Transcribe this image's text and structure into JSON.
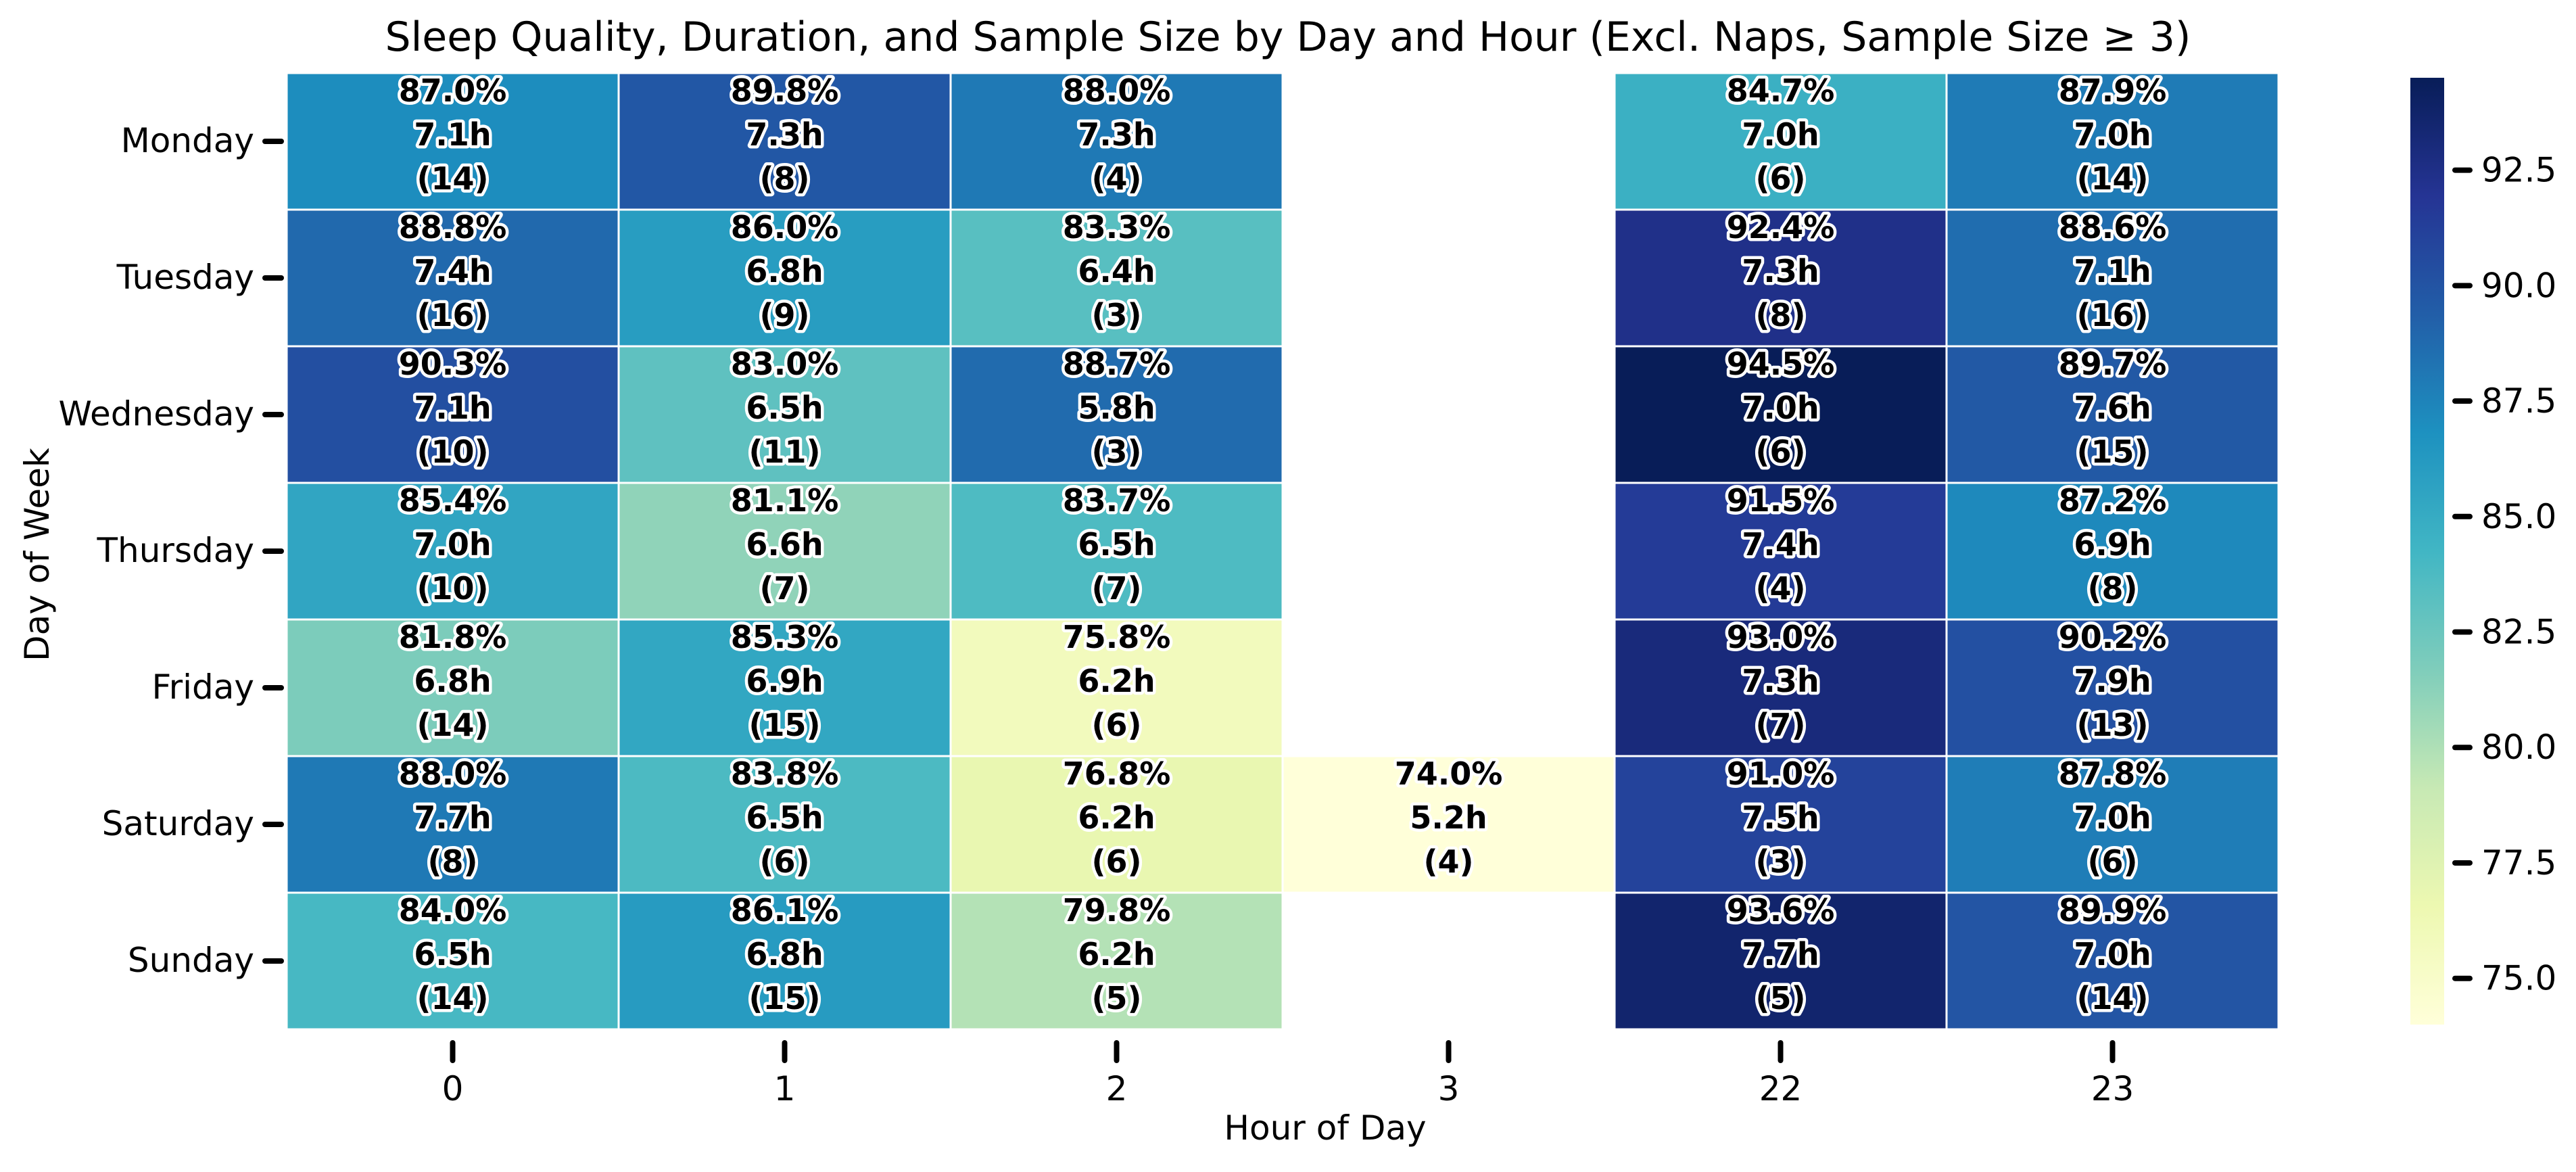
{
  "chart_data": {
    "type": "heatmap",
    "title": "Sleep Quality, Duration, and Sample Size by Day and Hour (Excl. Naps, Sample Size ≥ 3)",
    "xlabel": "Hour of Day",
    "ylabel": "Day of Week",
    "x_categories": [
      "0",
      "1",
      "2",
      "3",
      "22",
      "23"
    ],
    "y_categories": [
      "Monday",
      "Tuesday",
      "Wednesday",
      "Thursday",
      "Friday",
      "Saturday",
      "Sunday"
    ],
    "quality": [
      [
        87.0,
        89.8,
        88.0,
        null,
        84.7,
        87.9
      ],
      [
        88.8,
        86.0,
        83.3,
        null,
        92.4,
        88.6
      ],
      [
        90.3,
        83.0,
        88.7,
        null,
        94.5,
        89.7
      ],
      [
        85.4,
        81.1,
        83.7,
        null,
        91.5,
        87.2
      ],
      [
        81.8,
        85.3,
        75.8,
        null,
        93.0,
        90.2
      ],
      [
        88.0,
        83.8,
        76.8,
        74.0,
        91.0,
        87.8
      ],
      [
        84.0,
        86.1,
        79.8,
        null,
        93.6,
        89.9
      ]
    ],
    "duration_hours": [
      [
        7.1,
        7.3,
        7.3,
        null,
        7.0,
        7.0
      ],
      [
        7.4,
        6.8,
        6.4,
        null,
        7.3,
        7.1
      ],
      [
        7.1,
        6.5,
        5.8,
        null,
        7.0,
        7.6
      ],
      [
        7.0,
        6.6,
        6.5,
        null,
        7.4,
        6.9
      ],
      [
        6.8,
        6.9,
        6.2,
        null,
        7.3,
        7.9
      ],
      [
        7.7,
        6.5,
        6.2,
        5.2,
        7.5,
        7.0
      ],
      [
        6.5,
        6.8,
        6.2,
        null,
        7.7,
        7.0
      ]
    ],
    "sample_size": [
      [
        14,
        8,
        4,
        null,
        6,
        14
      ],
      [
        16,
        9,
        3,
        null,
        8,
        16
      ],
      [
        10,
        11,
        3,
        null,
        6,
        15
      ],
      [
        10,
        7,
        7,
        null,
        4,
        8
      ],
      [
        14,
        15,
        6,
        null,
        7,
        13
      ],
      [
        8,
        6,
        6,
        4,
        3,
        6
      ],
      [
        14,
        15,
        5,
        null,
        5,
        14
      ]
    ],
    "cell_label_format": [
      "{q}%",
      "{d}h",
      "({n})"
    ],
    "colorbar": {
      "colormap": "YlGnBu",
      "range": [
        74.0,
        94.5
      ],
      "ticks": [
        "75.0",
        "77.5",
        "80.0",
        "82.5",
        "85.0",
        "87.5",
        "90.0",
        "92.5"
      ]
    }
  }
}
